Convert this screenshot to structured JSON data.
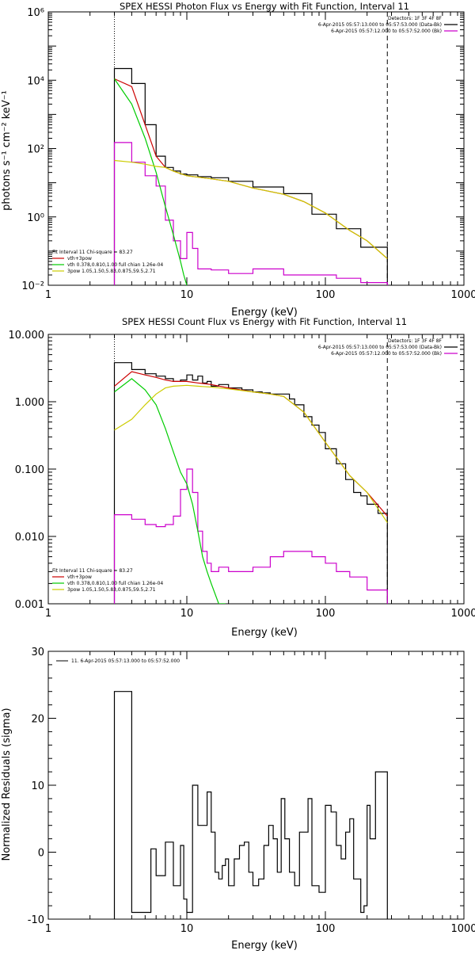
{
  "chart_data": [
    {
      "type": "line",
      "title": "SPEX HESSI Photon Flux vs Energy with Fit Function, Interval 11",
      "xlabel": "Energy (keV)",
      "ylabel": "photons s⁻¹ cm⁻² keV⁻¹",
      "xscale": "log",
      "yscale": "log",
      "xlim": [
        1,
        1000
      ],
      "ylim": [
        0.01,
        1000000
      ],
      "xticks": [
        1,
        10,
        100,
        1000
      ],
      "xtick_labels": [
        "1",
        "10",
        "100",
        "1000"
      ],
      "yticks": [
        0.01,
        1,
        100,
        10000,
        1000000
      ],
      "ytick_labels": [
        "10⁻²",
        "10⁰",
        "10²",
        "10⁴",
        "10⁶"
      ],
      "vlines": [
        {
          "x": 3,
          "style": "dotted"
        },
        {
          "x": 280,
          "style": "dashed"
        }
      ],
      "legend_tr": [
        "Detectors: 1F 3F 4F 8F",
        "6-Apr-2015 05:57:13.000 to 05:57:53.000 (Data-Bk)",
        "6-Apr-2015 05:57:12.000 to 05:57:52.000 (Bk)"
      ],
      "legend_tr_colors": [
        "",
        "#000000",
        "#cc00cc"
      ],
      "legend_bl": [
        "Fit Interval 11    Chi-square = 83.27",
        "vth+3pow",
        "vth 0.378,0.810,1.00  full chian 1.26e-04",
        "3pow 1.05,1.50,5.83,0.875,59.5,2.71"
      ],
      "legend_bl_colors": [
        "",
        "#cc0000",
        "#00cc00",
        "#cccc00"
      ],
      "series": [
        {
          "name": "Data-Bk",
          "color": "#000000",
          "step": true,
          "edges": [
            3,
            4,
            5,
            6,
            7,
            8,
            9,
            10,
            12,
            15,
            20,
            30,
            50,
            80,
            120,
            180,
            280
          ],
          "values": [
            22000,
            8000,
            500,
            60,
            28,
            22,
            18,
            17,
            15,
            14,
            11,
            7.5,
            4.8,
            1.2,
            0.45,
            0.13
          ]
        },
        {
          "name": "Bk",
          "color": "#cc00cc",
          "step": true,
          "edges": [
            3,
            4,
            5,
            6,
            7,
            8,
            9,
            10,
            11,
            12,
            15,
            20,
            30,
            50,
            80,
            120,
            180,
            280
          ],
          "values": [
            150,
            40,
            16,
            8,
            0.8,
            0.2,
            0.06,
            0.35,
            0.12,
            0.03,
            0.028,
            0.022,
            0.03,
            0.02,
            0.02,
            0.016,
            0.012
          ]
        },
        {
          "name": "vth+3pow",
          "color": "#cc0000",
          "x": [
            3,
            4,
            5,
            6,
            7,
            8,
            10,
            15,
            20,
            30,
            50,
            70,
            100,
            150,
            200,
            280
          ],
          "y": [
            11000,
            6500,
            500,
            60,
            28,
            22,
            16,
            13,
            11,
            7,
            4.6,
            2.8,
            1.3,
            0.4,
            0.2,
            0.06
          ]
        },
        {
          "name": "vth",
          "color": "#00cc00",
          "x": [
            3,
            4,
            5,
            6,
            7,
            8,
            9,
            9.5,
            10
          ],
          "y": [
            11000,
            2000,
            200,
            20,
            2,
            0.3,
            0.05,
            0.02,
            0.01
          ]
        },
        {
          "name": "3pow",
          "color": "#cccc00",
          "x": [
            3,
            4,
            5,
            6,
            7,
            8,
            10,
            15,
            20,
            30,
            50,
            70,
            100,
            150,
            200,
            280
          ],
          "y": [
            45,
            40,
            35,
            30,
            28,
            22,
            16,
            13,
            11,
            7,
            4.6,
            2.8,
            1.3,
            0.4,
            0.2,
            0.06
          ]
        }
      ]
    },
    {
      "type": "line",
      "title": "SPEX HESSI Count Flux vs Energy with Fit Function, Interval 11",
      "xlabel": "Energy (keV)",
      "ylabel": "",
      "xscale": "log",
      "yscale": "log",
      "xlim": [
        1,
        1000
      ],
      "ylim": [
        0.001,
        10
      ],
      "xticks": [
        1,
        10,
        100,
        1000
      ],
      "xtick_labels": [
        "1",
        "10",
        "100",
        "1000"
      ],
      "yticks": [
        0.001,
        0.01,
        0.1,
        1,
        10
      ],
      "ytick_labels": [
        "0.001",
        "0.010",
        "0.100",
        "1.000",
        "10.000"
      ],
      "vlines": [
        {
          "x": 3,
          "style": "dotted"
        },
        {
          "x": 280,
          "style": "dashed"
        }
      ],
      "legend_tr": [
        "Detectors: 1F 3F 4F 8F",
        "6-Apr-2015 05:57:13.000 to 05:57:53.000 (Data-Bk)",
        "6-Apr-2015 05:57:12.000 to 05:57:52.000 (Bk)"
      ],
      "legend_tr_colors": [
        "",
        "#000000",
        "#cc00cc"
      ],
      "legend_bl": [
        "Fit Interval 11    Chi-square = 83.27",
        "vth+3pow",
        "vth 0.378,0.810,1.00  full chian 1.26e-04",
        "3pow 1.05,1.50,5.83,0.875,59.5,2.71"
      ],
      "legend_bl_colors": [
        "",
        "#cc0000",
        "#00cc00",
        "#cccc00"
      ],
      "series": [
        {
          "name": "Data-Bk",
          "color": "#000000",
          "step": true,
          "edges": [
            3,
            4,
            5,
            6,
            7,
            8,
            9,
            10,
            11,
            12,
            13,
            14,
            15,
            17,
            20,
            25,
            30,
            35,
            40,
            45,
            50,
            55,
            60,
            70,
            80,
            90,
            100,
            120,
            140,
            160,
            180,
            200,
            240,
            280
          ],
          "values": [
            3.8,
            3.0,
            2.6,
            2.4,
            2.2,
            2.0,
            2.1,
            2.5,
            2.1,
            2.4,
            1.9,
            2.0,
            1.7,
            1.8,
            1.6,
            1.5,
            1.4,
            1.35,
            1.3,
            1.3,
            1.3,
            1.1,
            0.9,
            0.6,
            0.45,
            0.35,
            0.2,
            0.12,
            0.07,
            0.045,
            0.04,
            0.03,
            0.022
          ]
        },
        {
          "name": "Bk",
          "color": "#cc00cc",
          "step": true,
          "edges": [
            3,
            4,
            5,
            6,
            7,
            8,
            9,
            10,
            11,
            12,
            13,
            14,
            15,
            17,
            20,
            25,
            30,
            40,
            50,
            60,
            80,
            100,
            120,
            150,
            200,
            280
          ],
          "values": [
            0.021,
            0.018,
            0.015,
            0.014,
            0.015,
            0.02,
            0.05,
            0.1,
            0.045,
            0.012,
            0.006,
            0.004,
            0.003,
            0.0035,
            0.003,
            0.003,
            0.0035,
            0.005,
            0.006,
            0.006,
            0.005,
            0.004,
            0.003,
            0.0025,
            0.0016
          ]
        },
        {
          "name": "vth+3pow",
          "color": "#cc0000",
          "x": [
            3,
            4,
            5,
            6,
            7,
            8,
            10,
            12,
            15,
            20,
            30,
            40,
            50,
            70,
            100,
            150,
            200,
            280
          ],
          "y": [
            1.7,
            2.8,
            2.5,
            2.3,
            2.1,
            2.0,
            2.0,
            1.9,
            1.8,
            1.6,
            1.4,
            1.3,
            1.2,
            0.7,
            0.25,
            0.08,
            0.045,
            0.02
          ]
        },
        {
          "name": "vth",
          "color": "#00cc00",
          "x": [
            3,
            4,
            5,
            6,
            7,
            8,
            9,
            10,
            11,
            12,
            13,
            14,
            15,
            17,
            19
          ],
          "y": [
            1.4,
            2.2,
            1.5,
            0.9,
            0.4,
            0.18,
            0.09,
            0.06,
            0.03,
            0.012,
            0.005,
            0.003,
            0.002,
            0.001,
            0.0008
          ]
        },
        {
          "name": "3pow",
          "color": "#cccc00",
          "x": [
            3,
            4,
            5,
            6,
            7,
            8,
            10,
            12,
            15,
            20,
            30,
            40,
            50,
            70,
            100,
            150,
            200,
            280
          ],
          "y": [
            0.38,
            0.55,
            0.9,
            1.3,
            1.6,
            1.7,
            1.75,
            1.7,
            1.65,
            1.55,
            1.4,
            1.3,
            1.2,
            0.7,
            0.25,
            0.08,
            0.045,
            0.016
          ]
        }
      ]
    },
    {
      "type": "line",
      "title": "",
      "xlabel": "Energy (keV)",
      "ylabel": "Normalized Residuals (sigma)",
      "xscale": "log",
      "yscale": "linear",
      "xlim": [
        1,
        1000
      ],
      "ylim": [
        -10,
        30
      ],
      "xticks": [
        1,
        10,
        100,
        1000
      ],
      "xtick_labels": [
        "1",
        "10",
        "100",
        "1000"
      ],
      "yticks": [
        -10,
        0,
        10,
        20,
        30
      ],
      "ytick_labels": [
        "-10",
        "0",
        "10",
        "20",
        "30"
      ],
      "vlines": [],
      "legend_tl": [
        "11.  6-Apr-2015 05:57:13.000 to 05:57:52.000"
      ],
      "series": [
        {
          "name": "11.  6-Apr-2015 05:57:13.000 to 05:57:52.000",
          "color": "#000000",
          "step": true,
          "edges": [
            3,
            4,
            5,
            5.5,
            6,
            6.5,
            7,
            8,
            8.5,
            9,
            9.5,
            10,
            11,
            12,
            13,
            14,
            15,
            16,
            17,
            18,
            19,
            20,
            22,
            24,
            26,
            28,
            30,
            33,
            36,
            39,
            42,
            45,
            48,
            51,
            55,
            60,
            65,
            70,
            75,
            80,
            90,
            100,
            110,
            120,
            130,
            140,
            150,
            160,
            170,
            180,
            190,
            200,
            210,
            230,
            250,
            280
          ],
          "values": [
            24,
            -9,
            -9,
            0.5,
            -3.5,
            -3.5,
            1.5,
            -5,
            -5,
            1,
            -7,
            -9,
            10,
            4,
            4,
            9,
            3,
            -3,
            -4,
            -2,
            -1,
            -5,
            -1,
            1,
            1.5,
            -3,
            -5,
            -4,
            1,
            4,
            2,
            -3,
            8,
            2,
            -3,
            -5,
            3,
            3,
            8,
            -5,
            -6,
            7,
            6,
            1,
            -1,
            3,
            5,
            -4,
            -4,
            -9,
            -8,
            7,
            2,
            12,
            12
          ]
        }
      ]
    }
  ]
}
